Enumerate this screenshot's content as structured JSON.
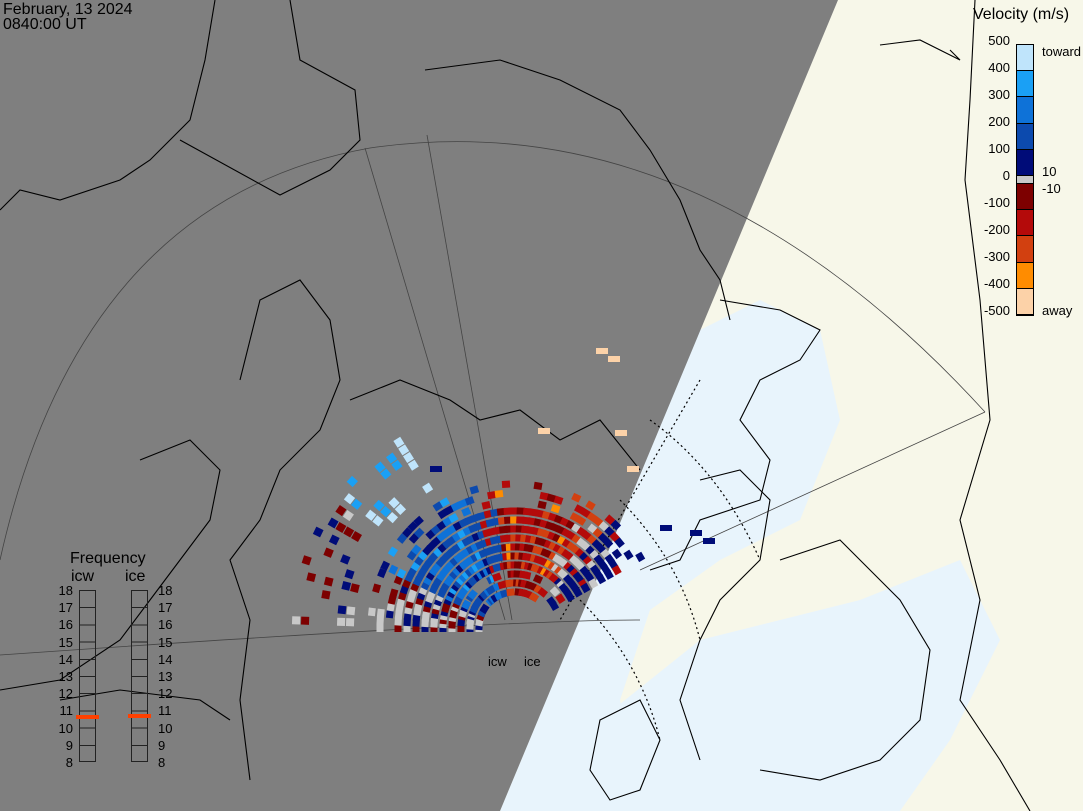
{
  "header": {
    "date": "February, 13 2024",
    "time": "0840:00 UT"
  },
  "colorbar": {
    "title": "Velocity (m/s)",
    "ticks": [
      "500",
      "400",
      "300",
      "200",
      "100",
      "0",
      "-100",
      "-200",
      "-300",
      "-400",
      "-500"
    ],
    "label_toward": "toward",
    "label_away": "away",
    "label_pos": "10",
    "label_neg": "-10",
    "colors": [
      "#bfe4fb",
      "#1aa0f5",
      "#0e72d8",
      "#0c4aae",
      "#000c78",
      "#c8c8c8",
      "#7d0000",
      "#b40a0a",
      "#d24010",
      "#ff8c00",
      "#fcd2a8"
    ]
  },
  "frequency": {
    "title": "Frequency",
    "unit_range": [
      8,
      18
    ],
    "ticks": [
      "18",
      "17",
      "16",
      "15",
      "14",
      "13",
      "12",
      "11",
      "10",
      "9",
      "8"
    ],
    "radars": [
      {
        "name": "icw",
        "value_mhz": 10.6
      },
      {
        "name": "ice",
        "value_mhz": 10.7
      }
    ],
    "marker_color": "#ff4000"
  },
  "map": {
    "radar_labels": [
      "icw",
      "ice"
    ],
    "night_color": "#7f7f7f",
    "day_land_color": "#f7f7e9",
    "day_sea_color": "#e8f4fc"
  }
}
